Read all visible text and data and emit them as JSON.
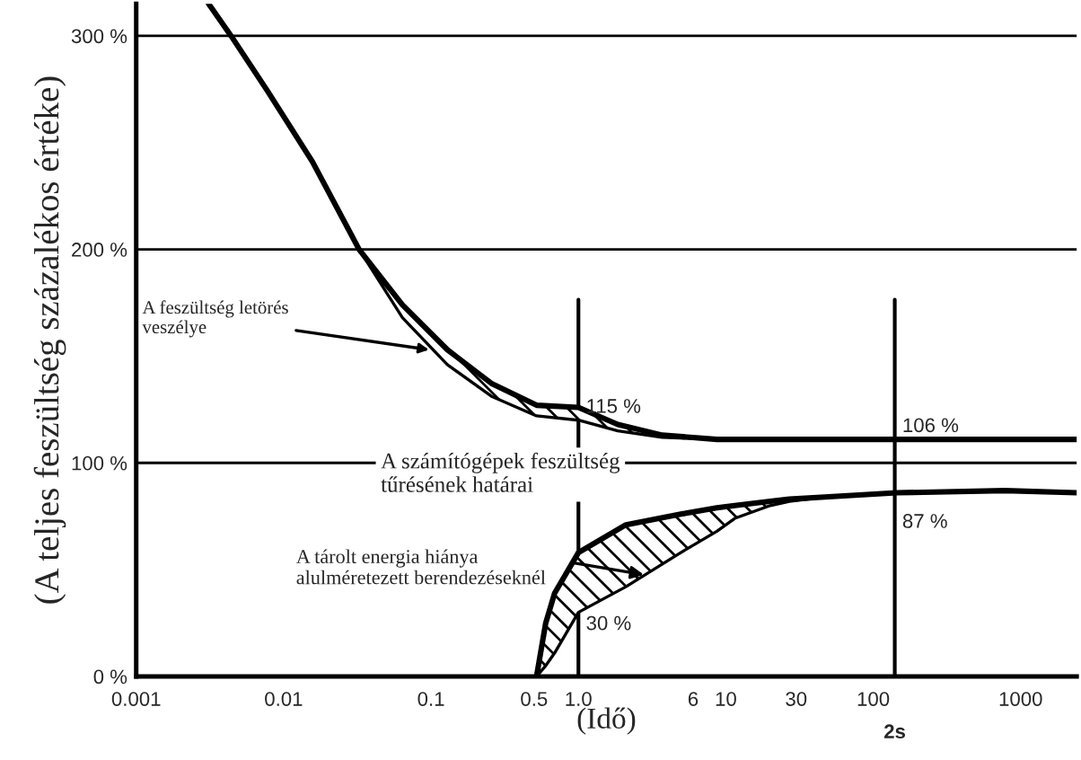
{
  "chart_data": {
    "type": "line",
    "xlabel": "(Idő)",
    "ylabel": "(A teljes feszültség százalékos értéke)",
    "log": "x",
    "xlim": [
      0.001,
      2400
    ],
    "ylim": [
      0,
      315
    ],
    "xticks": [
      0.001,
      0.01,
      0.1,
      0.5,
      {
        "value": 1,
        "label": "1.0"
      },
      6,
      10,
      30,
      100,
      1000
    ],
    "yticks": [
      {
        "value": 0,
        "label": "0 %"
      },
      {
        "value": 100,
        "label": "100 %"
      },
      {
        "value": 200,
        "label": "200 %"
      },
      {
        "value": 300,
        "label": "300 %"
      }
    ],
    "grid": "y",
    "marker": "none",
    "line_style": "solid",
    "series": [
      {
        "color": "#000000",
        "x": [
          0.0031,
          0.0044,
          0.0078,
          0.0157,
          0.0325,
          0.064,
          0.129,
          0.26,
          0.52,
          1.0,
          1.85,
          3.7,
          8.7,
          35,
          145,
          780,
          2400
        ],
        "values": [
          315,
          300,
          274,
          241,
          200,
          174,
          153,
          137,
          127,
          126,
          118,
          113,
          111,
          111,
          111,
          111,
          111
        ],
        "lower": [
          null,
          null,
          null,
          null,
          200,
          168,
          146,
          131,
          122,
          120,
          115,
          112,
          111,
          null,
          null,
          null,
          null
        ],
        "upper": [
          null,
          null,
          null,
          null,
          200,
          174,
          153,
          137,
          127,
          126,
          118,
          113,
          111,
          null,
          null,
          null,
          null
        ]
      },
      {
        "color": "#000000",
        "x": [
          0.52,
          0.6,
          0.69,
          1.0,
          2.1,
          4.95,
          8.7,
          11.5,
          20,
          27,
          47,
          145,
          780,
          2400
        ],
        "values": [
          0,
          25,
          39,
          58,
          71,
          76,
          79,
          80,
          82,
          83,
          84,
          86,
          87,
          86
        ],
        "lower": [
          0,
          5,
          11,
          30,
          42,
          58,
          68,
          74,
          80,
          82,
          84,
          null,
          null,
          null
        ],
        "upper": [
          0,
          25,
          39,
          58,
          71,
          76,
          79,
          80,
          82,
          83,
          84,
          null,
          null,
          null
        ]
      }
    ],
    "ref_lines": [
      {
        "axis": "x",
        "value": 1.0,
        "color": "#000000"
      },
      {
        "axis": "x",
        "value": 140,
        "label": "2s",
        "color": "#000000"
      }
    ],
    "annotations": [
      {
        "text": "A feszültség letörés\nveszélye",
        "x": 0.097,
        "y": 153
      },
      "A számítógépek feszültség\ntűrésének határai",
      "A tárolt energia hiánya\nalulméretezett berendezéseknél",
      {
        "text": "115 %",
        "x": 1.0,
        "y": 120
      },
      {
        "text": "106 %",
        "x": 140,
        "y": 111
      },
      {
        "text": "87 %",
        "x": 140,
        "y": 86
      },
      {
        "text": "30 %",
        "x": 1.0,
        "y": 30
      }
    ]
  }
}
